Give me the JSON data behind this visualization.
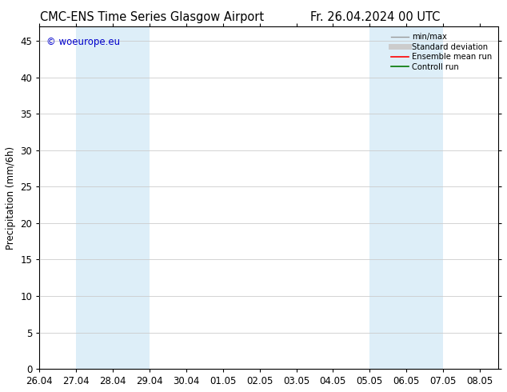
{
  "title_left": "CMC-ENS Time Series Glasgow Airport",
  "title_right": "Fr. 26.04.2024 00 UTC",
  "ylabel": "Precipitation (mm/6h)",
  "watermark": "© woeurope.eu",
  "ylim": [
    0,
    47
  ],
  "yticks": [
    0,
    5,
    10,
    15,
    20,
    25,
    30,
    35,
    40,
    45
  ],
  "xtick_labels": [
    "26.04",
    "27.04",
    "28.04",
    "29.04",
    "30.04",
    "01.05",
    "02.05",
    "03.05",
    "04.05",
    "05.05",
    "06.05",
    "07.05",
    "08.05"
  ],
  "shaded_regions": [
    {
      "start": 1,
      "end": 3,
      "color": "#ddeef8"
    },
    {
      "start": 9,
      "end": 11,
      "color": "#ddeef8"
    }
  ],
  "legend_items": [
    {
      "label": "min/max",
      "color": "#999999",
      "lw": 1.0
    },
    {
      "label": "Standard deviation",
      "color": "#cccccc",
      "lw": 5
    },
    {
      "label": "Ensemble mean run",
      "color": "#ff0000",
      "lw": 1.2
    },
    {
      "label": "Controll run",
      "color": "#007700",
      "lw": 1.2
    }
  ],
  "background_color": "#ffffff",
  "plot_bg_color": "#ffffff",
  "grid_color": "#cccccc",
  "font_size": 8.5,
  "title_font_size": 10.5
}
